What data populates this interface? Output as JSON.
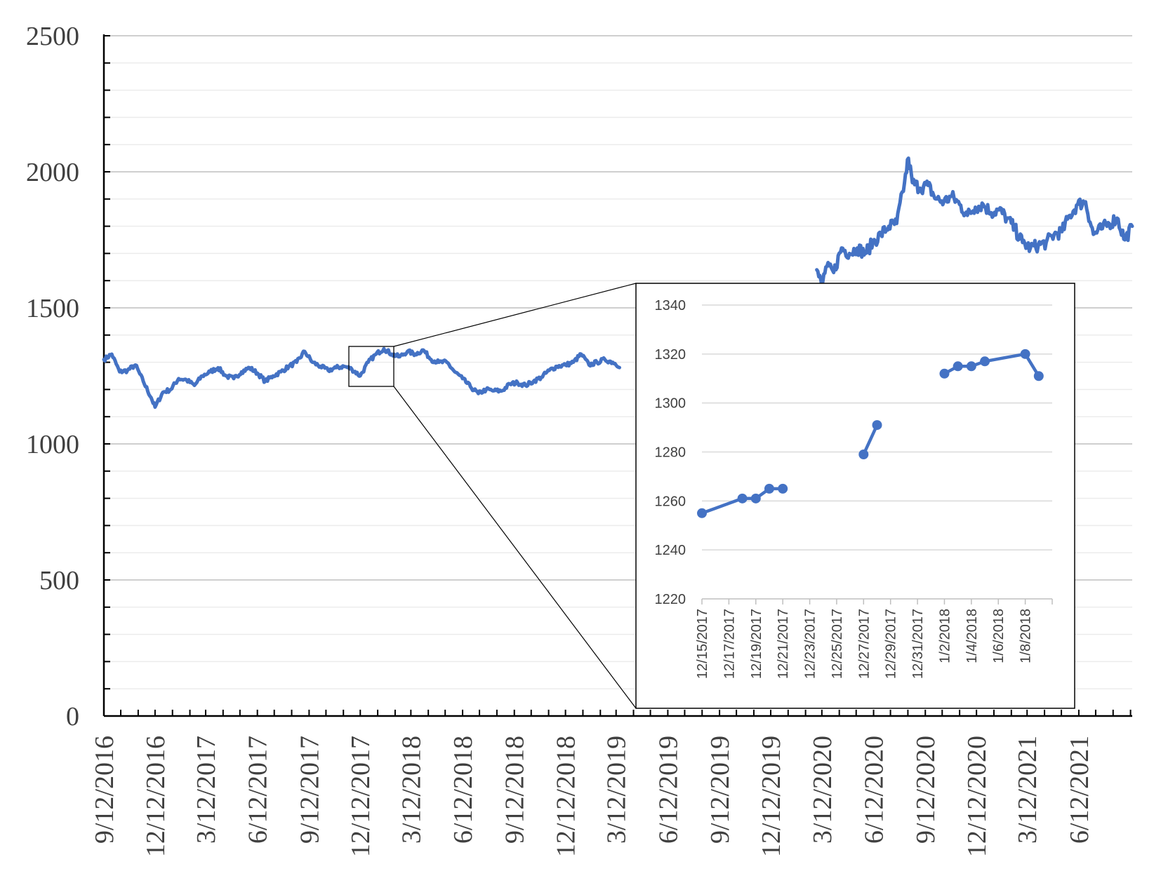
{
  "chart_data": [
    {
      "type": "line",
      "xlabel": "",
      "ylabel": "",
      "ylim": [
        0,
        2500
      ],
      "yticks": [
        0,
        500,
        1000,
        1500,
        2000,
        2500
      ],
      "x_tick_labels": [
        "9/12/2016",
        "12/12/2016",
        "3/12/2017",
        "6/12/2017",
        "9/12/2017",
        "12/12/2017",
        "3/12/2018",
        "6/12/2018",
        "9/12/2018",
        "12/12/2018",
        "3/12/2019",
        "6/12/2019",
        "9/12/2019",
        "12/12/2019",
        "3/12/2020",
        "6/12/2020",
        "9/12/2020",
        "12/12/2020",
        "3/12/2021",
        "6/12/2021"
      ],
      "xlim": [
        "2016-09-12",
        "2021-09-15"
      ],
      "grid": true,
      "line_color": "#4472c4",
      "series": [
        {
          "x": [
            "2016-09-12",
            "2016-09-26",
            "2016-10-10",
            "2016-10-24",
            "2016-11-07",
            "2016-11-21",
            "2016-12-05",
            "2016-12-12",
            "2016-12-26",
            "2017-01-09",
            "2017-01-23",
            "2017-02-06",
            "2017-02-20",
            "2017-03-06",
            "2017-03-20",
            "2017-04-03",
            "2017-04-17",
            "2017-05-01",
            "2017-05-15",
            "2017-05-29",
            "2017-06-12",
            "2017-06-26",
            "2017-07-10",
            "2017-07-24",
            "2017-08-07",
            "2017-08-21",
            "2017-09-04",
            "2017-09-18",
            "2017-10-02",
            "2017-10-16",
            "2017-10-30",
            "2017-11-13",
            "2017-11-27",
            "2017-12-12",
            "2017-12-26",
            "2018-01-09",
            "2018-01-23",
            "2018-02-06",
            "2018-02-20",
            "2018-03-06",
            "2018-03-20",
            "2018-04-03",
            "2018-04-17",
            "2018-05-01",
            "2018-05-15",
            "2018-05-29",
            "2018-06-12",
            "2018-06-26",
            "2018-07-10",
            "2018-07-24",
            "2018-08-07",
            "2018-08-21",
            "2018-09-04",
            "2018-09-18",
            "2018-10-02",
            "2018-10-16",
            "2018-10-30",
            "2018-11-13",
            "2018-11-27",
            "2018-12-12",
            "2018-12-26",
            "2019-01-09",
            "2019-01-23",
            "2019-02-06",
            "2019-02-20",
            "2019-03-06",
            "2019-03-20",
            "2020-03-03",
            "2020-03-12",
            "2020-03-19",
            "2020-04-02",
            "2020-04-16",
            "2020-04-30",
            "2020-05-14",
            "2020-05-28",
            "2020-06-11",
            "2020-06-25",
            "2020-07-09",
            "2020-07-23",
            "2020-08-06",
            "2020-08-13",
            "2020-08-20",
            "2020-09-03",
            "2020-09-17",
            "2020-10-01",
            "2020-10-15",
            "2020-10-29",
            "2020-11-12",
            "2020-11-26",
            "2020-12-10",
            "2020-12-24",
            "2021-01-07",
            "2021-01-21",
            "2021-02-04",
            "2021-02-18",
            "2021-03-04",
            "2021-03-18",
            "2021-04-01",
            "2021-04-15",
            "2021-04-29",
            "2021-05-13",
            "2021-05-27",
            "2021-06-10",
            "2021-06-24",
            "2021-07-08",
            "2021-07-22",
            "2021-08-05",
            "2021-08-19",
            "2021-09-02",
            "2021-09-15"
          ],
          "y": [
            1310,
            1330,
            1265,
            1270,
            1290,
            1230,
            1170,
            1135,
            1190,
            1200,
            1240,
            1235,
            1215,
            1250,
            1265,
            1280,
            1250,
            1240,
            1265,
            1280,
            1260,
            1230,
            1250,
            1265,
            1285,
            1300,
            1340,
            1300,
            1285,
            1270,
            1280,
            1285,
            1275,
            1250,
            1300,
            1330,
            1350,
            1330,
            1320,
            1340,
            1330,
            1345,
            1310,
            1300,
            1300,
            1265,
            1240,
            1210,
            1185,
            1200,
            1195,
            1195,
            1220,
            1225,
            1215,
            1230,
            1245,
            1270,
            1285,
            1290,
            1300,
            1330,
            1290,
            1300,
            1310,
            1300,
            1285,
            1640,
            1580,
            1650,
            1630,
            1720,
            1700,
            1720,
            1700,
            1740,
            1770,
            1800,
            1810,
            1960,
            2050,
            1960,
            1940,
            1950,
            1900,
            1890,
            1910,
            1880,
            1840,
            1870,
            1880,
            1850,
            1860,
            1830,
            1790,
            1740,
            1720,
            1730,
            1740,
            1770,
            1780,
            1840,
            1880,
            1890,
            1770,
            1790,
            1810,
            1830,
            1750,
            1800
          ]
        }
      ]
    },
    {
      "type": "line",
      "xlabel": "",
      "ylabel": "",
      "ylim": [
        1220,
        1340
      ],
      "yticks": [
        1220,
        1240,
        1260,
        1280,
        1300,
        1320,
        1340
      ],
      "x_tick_labels": [
        "12/15/2017",
        "12/17/2017",
        "12/19/2017",
        "12/21/2017",
        "12/23/2017",
        "12/25/2017",
        "12/27/2017",
        "12/29/2017",
        "12/31/2017",
        "1/2/2018",
        "1/4/2018",
        "1/6/2018",
        "1/8/2018"
      ],
      "xlim": [
        "2017-12-15",
        "2018-01-10"
      ],
      "grid": true,
      "line_color": "#4472c4",
      "series": [
        {
          "segments": [
            {
              "x": [
                "2017-12-15",
                "2017-12-18",
                "2017-12-19",
                "2017-12-20",
                "2017-12-21"
              ],
              "y": [
                1255,
                1261,
                1261,
                1265,
                1265
              ]
            },
            {
              "x": [
                "2017-12-27",
                "2017-12-28"
              ],
              "y": [
                1279,
                1291
              ]
            },
            {
              "x": [
                "2018-01-02",
                "2018-01-03",
                "2018-01-04",
                "2018-01-05",
                "2018-01-08",
                "2018-01-09"
              ],
              "y": [
                1312,
                1315,
                1315,
                1317,
                1320,
                1311
              ]
            }
          ]
        }
      ]
    }
  ]
}
